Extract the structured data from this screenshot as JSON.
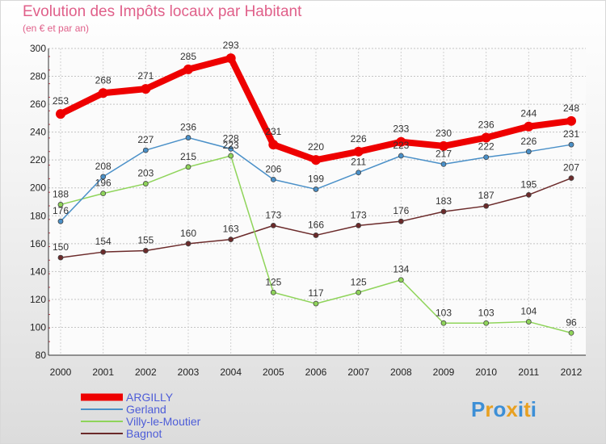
{
  "title": "Evolution des Impôts locaux par Habitant",
  "subtitle": "(en € et par an)",
  "brand": "Proxiti",
  "chart_data": {
    "type": "line",
    "title": "Evolution des Impôts locaux par Habitant",
    "subtitle": "(en € et par an)",
    "xlabel": "",
    "ylabel": "",
    "ylim": [
      80,
      300
    ],
    "yticks": [
      80,
      100,
      120,
      140,
      160,
      180,
      200,
      220,
      240,
      260,
      280,
      300
    ],
    "categories": [
      "2000",
      "2001",
      "2002",
      "2003",
      "2004",
      "2005",
      "2006",
      "2007",
      "2008",
      "2009",
      "2010",
      "2011",
      "2012"
    ],
    "legend_position": "bottom-left",
    "series": [
      {
        "name": "ARGILLY",
        "color": "#ee0000",
        "values": [
          253,
          268,
          271,
          285,
          293,
          231,
          220,
          226,
          233,
          230,
          236,
          244,
          248
        ]
      },
      {
        "name": "Gerland",
        "color": "#4a90c8",
        "values": [
          176,
          208,
          227,
          236,
          228,
          206,
          199,
          211,
          223,
          217,
          222,
          226,
          231
        ]
      },
      {
        "name": "Villy-le-Moutier",
        "color": "#8fd45a",
        "values": [
          188,
          196,
          203,
          215,
          223,
          125,
          117,
          125,
          134,
          103,
          103,
          104,
          96
        ]
      },
      {
        "name": "Bagnot",
        "color": "#6b2a2a",
        "values": [
          150,
          154,
          155,
          160,
          163,
          173,
          166,
          173,
          176,
          183,
          187,
          195,
          207
        ]
      }
    ]
  }
}
